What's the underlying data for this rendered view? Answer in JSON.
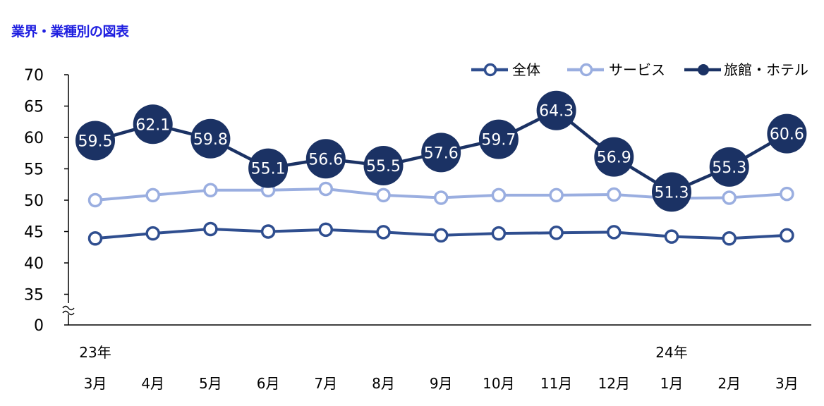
{
  "page_title": "業界・業種別の図表",
  "chart_data": {
    "type": "line",
    "title": "業界・業種別の図表",
    "xlabel": "",
    "ylabel": "",
    "ylim": [
      30,
      70
    ],
    "axis_break": true,
    "y_ticks": [
      35,
      40,
      45,
      50,
      55,
      60,
      65,
      70
    ],
    "y_bottom_label": "0",
    "categories": [
      "3月",
      "4月",
      "5月",
      "6月",
      "7月",
      "8月",
      "9月",
      "10月",
      "11月",
      "12月",
      "1月",
      "2月",
      "3月"
    ],
    "year_labels": [
      {
        "index": 0,
        "label": "23年"
      },
      {
        "index": 10,
        "label": "24年"
      }
    ],
    "legend_position": "top-right",
    "series": [
      {
        "name": "全体",
        "color": "#2f4e8f",
        "style": "hollow",
        "values": [
          43.9,
          44.7,
          45.4,
          45.0,
          45.3,
          44.9,
          44.4,
          44.7,
          44.8,
          44.9,
          44.2,
          43.9,
          44.4
        ]
      },
      {
        "name": "サービス",
        "color": "#9aaee0",
        "style": "hollow",
        "values": [
          50.0,
          50.8,
          51.6,
          51.6,
          51.8,
          50.8,
          50.4,
          50.8,
          50.8,
          50.9,
          50.3,
          50.4,
          51.0
        ]
      },
      {
        "name": "旅館・ホテル",
        "color": "#1b3264",
        "style": "filled-labeled",
        "values": [
          59.5,
          62.1,
          59.8,
          55.1,
          56.6,
          55.5,
          57.6,
          59.7,
          64.3,
          56.9,
          51.3,
          55.3,
          60.6
        ],
        "labels": [
          "59.5",
          "62.1",
          "59.8",
          "55.1",
          "56.6",
          "55.5",
          "57.6",
          "59.7",
          "64.3",
          "56.9",
          "51.3",
          "55.3",
          "60.6"
        ]
      }
    ]
  }
}
